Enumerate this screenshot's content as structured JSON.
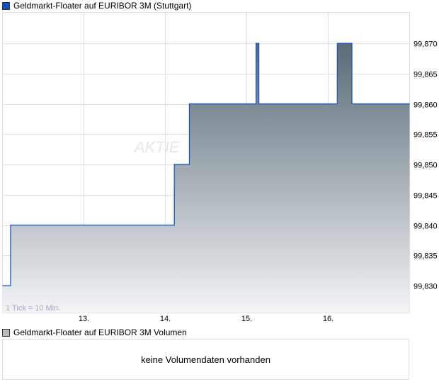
{
  "chart_data": {
    "type": "area",
    "title": "Geldmarkt-Floater auf EURIBOR 3M (Stuttgart)",
    "legend_color": "#1a4fb8",
    "line_color": "#1a56c8",
    "fill_gradient": [
      "#5a6b77",
      "#f3f4f6"
    ],
    "x_tick_labels": [
      "13.",
      "14.",
      "15.",
      "16."
    ],
    "x_ticks": [
      13,
      14,
      15,
      16
    ],
    "xlim": [
      12.0,
      17.01
    ],
    "y_tick_labels": [
      "99,870",
      "99,865",
      "99,860",
      "99,855",
      "99,850",
      "99,845",
      "99,840",
      "99,835",
      "99,830"
    ],
    "y_ticks": [
      99.87,
      99.865,
      99.86,
      99.855,
      99.85,
      99.845,
      99.84,
      99.835,
      99.83
    ],
    "ylim": [
      99.8255,
      99.8751
    ],
    "grid": true,
    "legend_placement": "top-left",
    "annotation": "1 Tick = 10 Min.",
    "watermark": "AKTIE",
    "step_points": [
      [
        12.0,
        99.83
      ],
      [
        12.1,
        99.84
      ],
      [
        14.115,
        99.85
      ],
      [
        14.3,
        99.86
      ],
      [
        15.12,
        99.87
      ],
      [
        15.155,
        99.86
      ],
      [
        16.12,
        99.87
      ],
      [
        16.3,
        99.86
      ],
      [
        17.01,
        99.86
      ]
    ]
  },
  "volume": {
    "title": "Geldmarkt-Floater auf EURIBOR 3M Volumen",
    "legend_color": "#bbbbbb",
    "message": "keine Volumendaten vorhanden"
  }
}
